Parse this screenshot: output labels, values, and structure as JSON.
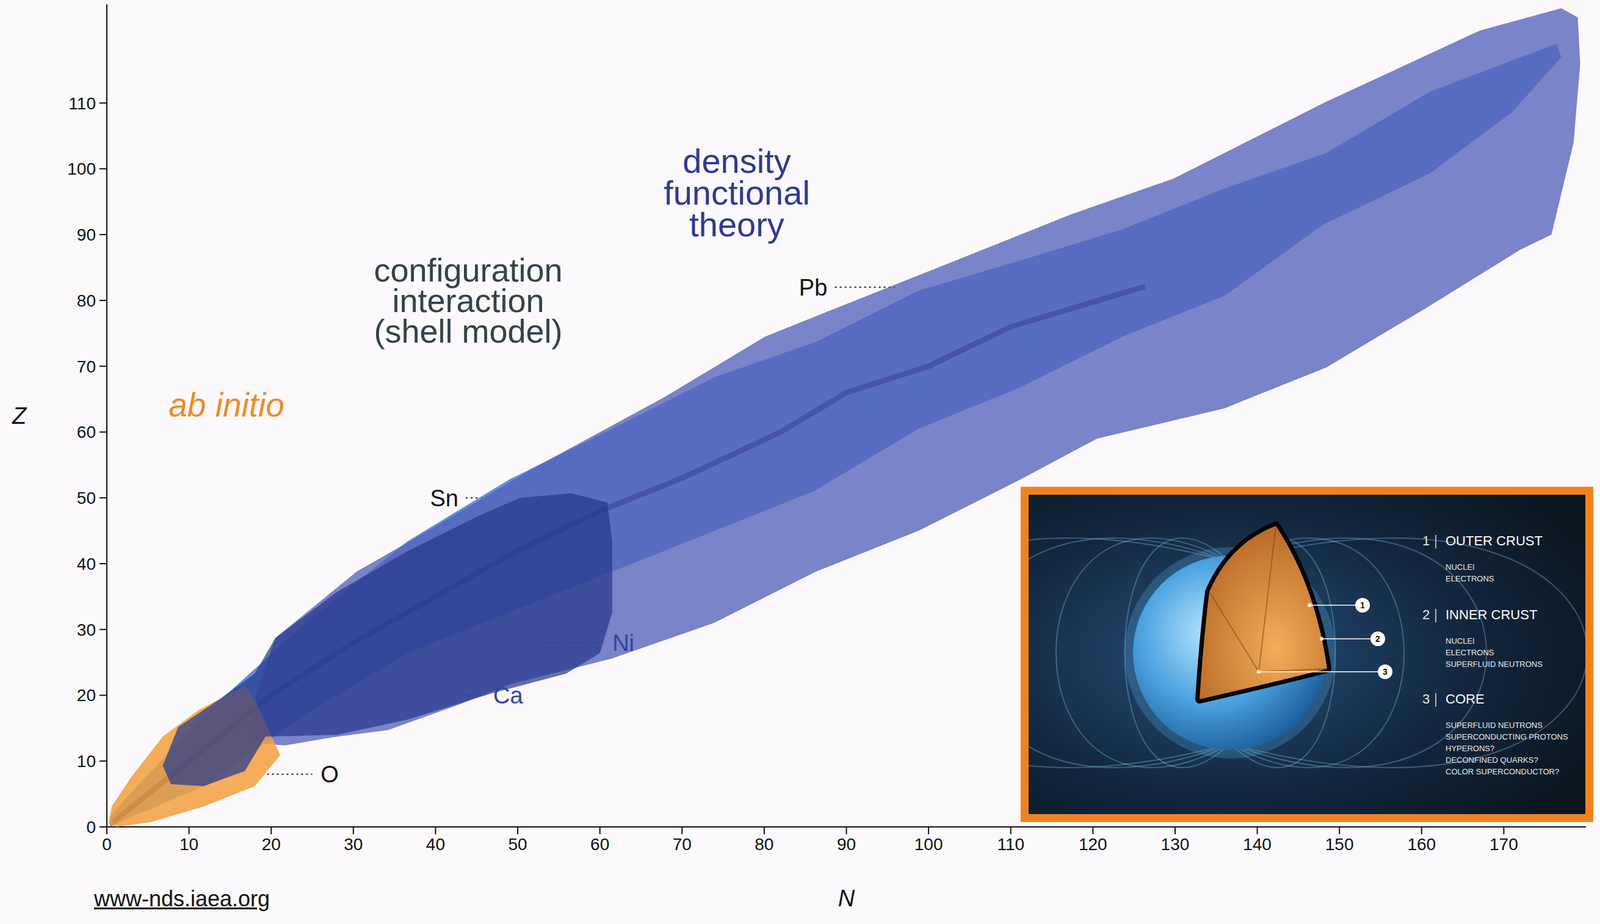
{
  "chart_data": {
    "type": "region",
    "x_label": "N",
    "y_label": "Z",
    "xlim": [
      0,
      180
    ],
    "ylim": [
      0,
      125
    ],
    "xticks": [
      0,
      10,
      20,
      30,
      40,
      50,
      60,
      70,
      80,
      90,
      100,
      110,
      120,
      130,
      140,
      150,
      160,
      170
    ],
    "yticks": [
      0,
      10,
      20,
      30,
      40,
      50,
      60,
      70,
      80,
      90,
      100,
      110
    ],
    "regions": [
      {
        "label": "density functional theory",
        "color": "#5563bb",
        "x": [
          17.8,
          20.5,
          30.4,
          39.1,
          51.6,
          67.7,
          80.1,
          92.5,
          105,
          117.4,
          129.8,
          148.4,
          167.1,
          177,
          179,
          179.3,
          178.5,
          175.8,
          172,
          160.9,
          148.4,
          136,
          120.5,
          111.2,
          98.8,
          86.3,
          73.9,
          61.5,
          49.1,
          42.9,
          34.2,
          28,
          21.7,
          18
        ],
        "y": [
          18.6,
          28.7,
          38.8,
          45,
          54.3,
          65.2,
          74.5,
          80.7,
          86.9,
          93.1,
          98.5,
          110.2,
          121,
          124.4,
          123,
          116,
          104,
          90,
          87.7,
          79.1,
          69.8,
          63.6,
          59,
          52.8,
          45,
          38.8,
          31,
          25.6,
          21.7,
          18.6,
          14.7,
          13.7,
          12.4,
          12.7
        ]
      },
      {
        "label": "ab initio",
        "color": "#f2a03d",
        "x": [
          0.2,
          0.6,
          3.1,
          6.8,
          11.2,
          16.8,
          18,
          21.1,
          18,
          11.8,
          5.6,
          1.2
        ],
        "y": [
          0.5,
          3.1,
          7.8,
          13.7,
          17.8,
          21.4,
          19.4,
          10.9,
          6.2,
          3.1,
          0.8,
          0
        ]
      },
      {
        "label": "configuration interaction (shell model)",
        "color": "#27398c",
        "x": [
          6.8,
          8.7,
          13.7,
          18,
          20.5,
          28,
          36.6,
          45.3,
          50.3,
          56.5,
          60.9,
          61.5,
          61.5,
          60,
          55.9,
          46.6,
          36.6,
          28,
          19.3,
          16.8,
          11.8,
          7.8
        ],
        "y": [
          9.3,
          15.2,
          19.4,
          23.3,
          28.7,
          35.7,
          41.9,
          47.3,
          50,
          50.7,
          49.3,
          43.4,
          32.6,
          26.4,
          23.3,
          20.2,
          16.3,
          14,
          13.7,
          8.5,
          6.2,
          6.5
        ]
      }
    ],
    "known_nuclides": {
      "color": "#4f86d4",
      "x": [
        0.4,
        3,
        11.8,
        24,
        36.6,
        49,
        61.5,
        74,
        86,
        98.8,
        111,
        123.6,
        136,
        148,
        161,
        171,
        177,
        176.4,
        161,
        148.4,
        136,
        123.6,
        111,
        98.8,
        86.3,
        73.9,
        61.5,
        49,
        36.6,
        24.2,
        11.8,
        3.1,
        0.4
      ],
      "y": [
        0,
        1.5,
        6.2,
        17,
        26.4,
        32.6,
        38.8,
        45,
        51,
        60.5,
        66.7,
        74.5,
        80.7,
        91.5,
        99.3,
        108.6,
        117,
        119,
        111.7,
        102.4,
        97,
        90.8,
        86,
        81.5,
        73.7,
        68.3,
        60.5,
        52.8,
        43.4,
        31,
        17,
        5.4,
        1.6
      ]
    },
    "stability_line": {
      "color": "#14206a",
      "x": [
        1,
        8,
        20,
        30,
        40,
        50,
        60,
        70,
        82,
        90,
        100,
        110,
        126
      ],
      "y": [
        1,
        8,
        20,
        28,
        35,
        42,
        48,
        53,
        60,
        66,
        70,
        76,
        82
      ]
    },
    "elements": [
      {
        "label": "Pb",
        "z": 82,
        "color": "#111111"
      },
      {
        "label": "Sn",
        "z": 50,
        "color": "#111111"
      },
      {
        "label": "Ni",
        "z": 28,
        "color": "#3444a0"
      },
      {
        "label": "Ca",
        "z": 20,
        "color": "#3444a0"
      },
      {
        "label": "O",
        "z": 8,
        "color": "#111111"
      }
    ],
    "source": "www-nds.iaea.org"
  },
  "inset": {
    "layers": [
      {
        "number": 1,
        "title": "OUTER CRUST",
        "items": [
          "NUCLEI",
          "ELECTRONS"
        ]
      },
      {
        "number": 2,
        "title": "INNER CRUST",
        "items": [
          "NUCLEI",
          "ELECTRONS",
          "SUPERFLUID NEUTRONS"
        ]
      },
      {
        "number": 3,
        "title": "CORE",
        "items": [
          "SUPERFLUID NEUTRONS",
          "SUPERCONDUCTING PROTONS",
          "HYPERONS?",
          "DECONFINED QUARKS?",
          "COLOR SUPERCONDUCTOR?"
        ]
      }
    ]
  }
}
